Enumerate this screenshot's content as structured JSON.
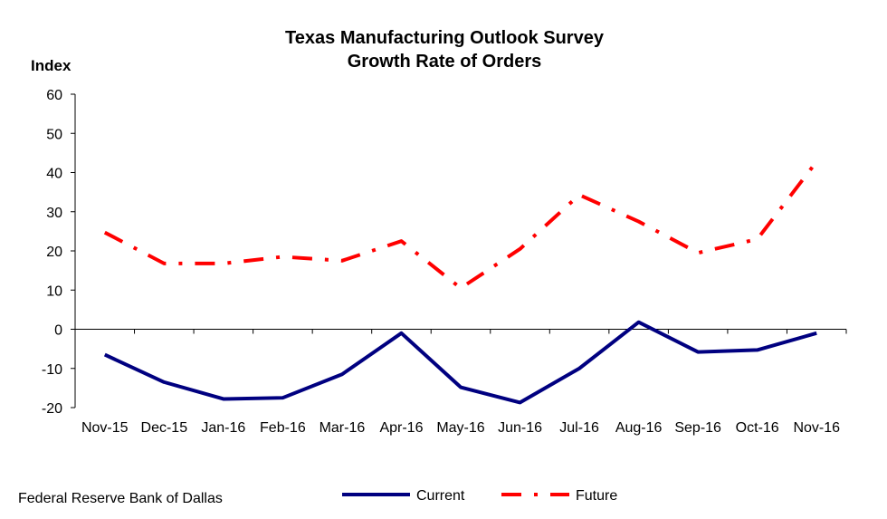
{
  "chart_data": {
    "type": "line",
    "title": "Texas Manufacturing Outlook Survey",
    "subtitle": "Growth Rate of Orders",
    "ylabel": "Index",
    "xlabel": "",
    "ylim": [
      -20,
      60
    ],
    "yticks": [
      60,
      50,
      40,
      30,
      20,
      10,
      0,
      -10,
      -20
    ],
    "categories": [
      "Nov-15",
      "Dec-15",
      "Jan-16",
      "Feb-16",
      "Mar-16",
      "Apr-16",
      "May-16",
      "Jun-16",
      "Jul-16",
      "Aug-16",
      "Sep-16",
      "Oct-16",
      "Nov-16"
    ],
    "series": [
      {
        "name": "Current",
        "color": "#000080",
        "style": "solid",
        "values": [
          -6.5,
          -13.5,
          -17.8,
          -17.5,
          -11.5,
          -1.0,
          -14.8,
          -18.7,
          -10.0,
          1.8,
          -5.8,
          -5.3,
          -1.0
        ]
      },
      {
        "name": "Future",
        "color": "#ff0000",
        "style": "dash-dot",
        "values": [
          24.7,
          16.8,
          16.8,
          18.5,
          17.5,
          22.5,
          10.5,
          20.5,
          34.3,
          27.5,
          19.5,
          23.0,
          42.8
        ]
      }
    ],
    "grid": false,
    "legend": "bottom-center"
  },
  "footer": {
    "source": "Federal Reserve Bank of Dallas"
  }
}
